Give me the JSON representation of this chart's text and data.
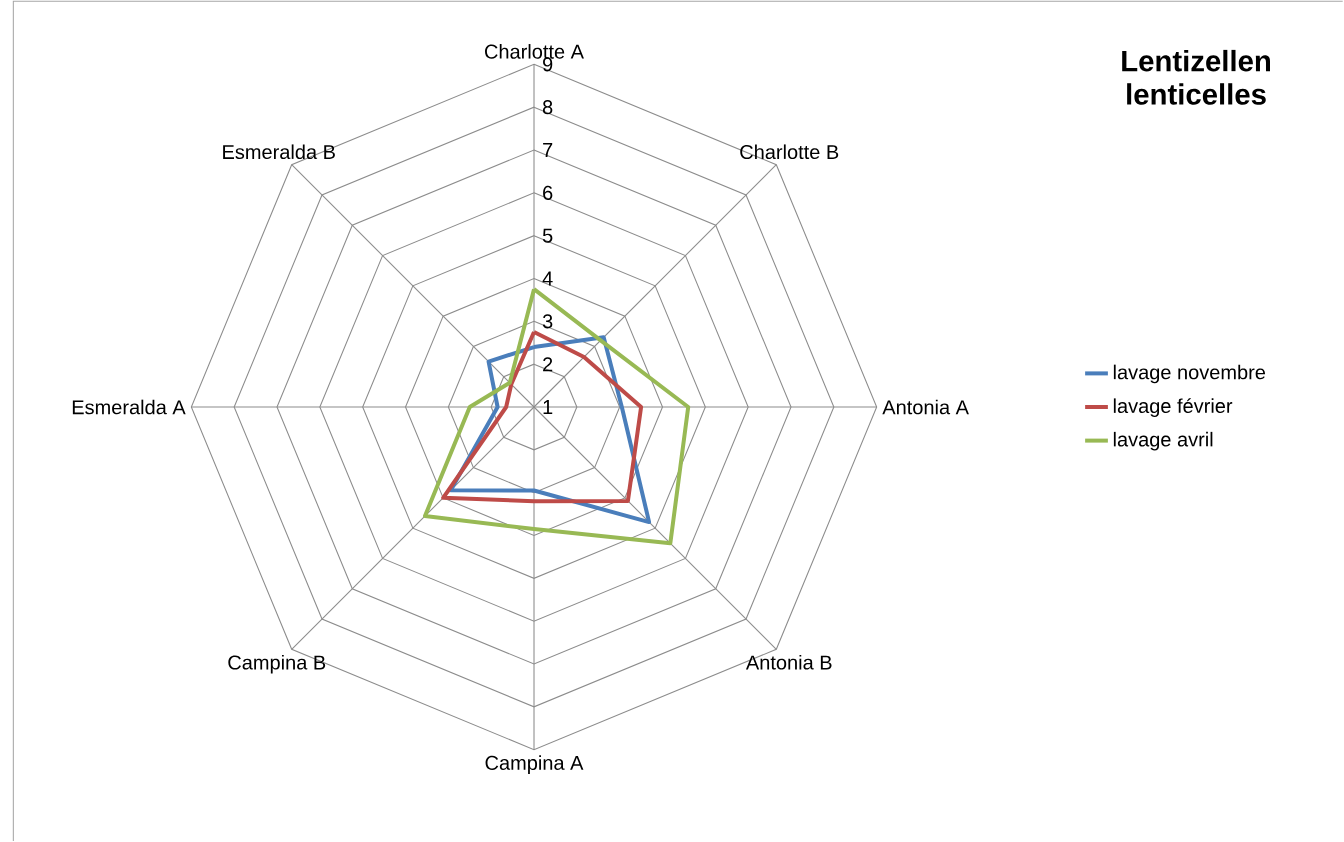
{
  "chart_data": {
    "type": "radar",
    "title": "Lentizellen lenticelles",
    "categories": [
      "Charlotte A",
      "Charlotte B",
      "Antonia A",
      "Antonia B",
      "Campina A",
      "Campina B",
      "Esmeralda A",
      "Esmeralda B"
    ],
    "series": [
      {
        "name": "lavage novembre",
        "color": "#4a7ebb",
        "values": [
          2.4,
          3.3,
          3.05,
          4.8,
          2.95,
          3.75,
          1.85,
          2.5
        ]
      },
      {
        "name": "lavage février",
        "color": "#be4b48",
        "values": [
          2.75,
          2.65,
          3.5,
          4.1,
          3.2,
          4.0,
          1.65,
          1.75
        ]
      },
      {
        "name": "lavage avril",
        "color": "#98b954",
        "values": [
          3.75,
          3.2,
          4.6,
          5.5,
          3.85,
          4.6,
          2.5,
          1.8
        ]
      }
    ],
    "ylim": [
      1,
      9
    ],
    "yticks": [
      1,
      2,
      3,
      4,
      5,
      6,
      7,
      8,
      9
    ],
    "grid": true,
    "legend": "right",
    "marker": "none",
    "line_style": "solid"
  }
}
